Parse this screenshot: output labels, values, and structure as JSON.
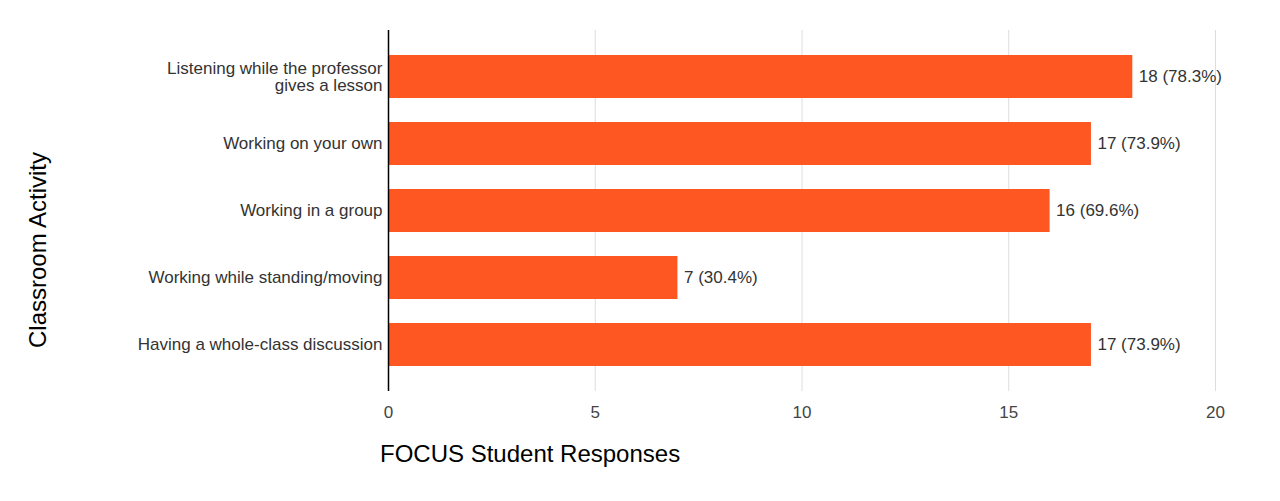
{
  "chart_data": {
    "type": "bar",
    "orientation": "horizontal",
    "categories": [
      "Listening while the professor\ngives a lesson",
      "Working on your own",
      "Working in a group",
      "Working while standing/moving",
      "Having a whole-class discussion"
    ],
    "values": [
      18,
      17,
      16,
      7,
      17
    ],
    "value_labels": [
      "18 (78.3%)",
      "17 (73.9%)",
      "16 (69.6%)",
      "7 (30.4%)",
      "17 (73.9%)"
    ],
    "data_labels": true,
    "color": "#ff5722",
    "x_label": "FOCUS Student Responses",
    "y_label": "Classroom Activity",
    "xlim": [
      0,
      20
    ],
    "xticks": [
      0,
      5,
      10,
      15,
      20
    ],
    "grid": true
  }
}
